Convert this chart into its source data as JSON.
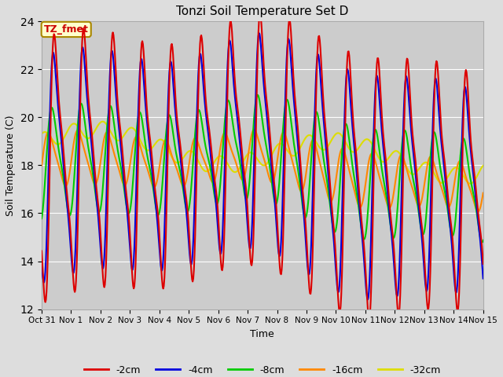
{
  "title": "Tonzi Soil Temperature Set D",
  "xlabel": "Time",
  "ylabel": "Soil Temperature (C)",
  "ylim": [
    12,
    24
  ],
  "yticks": [
    12,
    14,
    16,
    18,
    20,
    22,
    24
  ],
  "background_color": "#dddddd",
  "plot_bg_color": "#cccccc",
  "legend_label": "TZ_fmet",
  "series_colors": {
    "-2cm": "#dd0000",
    "-4cm": "#0000dd",
    "-8cm": "#00cc00",
    "-16cm": "#ff8800",
    "-32cm": "#dddd00"
  },
  "tick_labels": [
    "Oct 31",
    "Nov 1",
    "Nov 2",
    "Nov 3",
    "Nov 4",
    "Nov 5",
    "Nov 6",
    "Nov 7",
    "Nov 8",
    "Nov 9",
    "Nov 10",
    "Nov 11",
    "Nov 12",
    "Nov 13",
    "Nov 14",
    "Nov 15"
  ]
}
